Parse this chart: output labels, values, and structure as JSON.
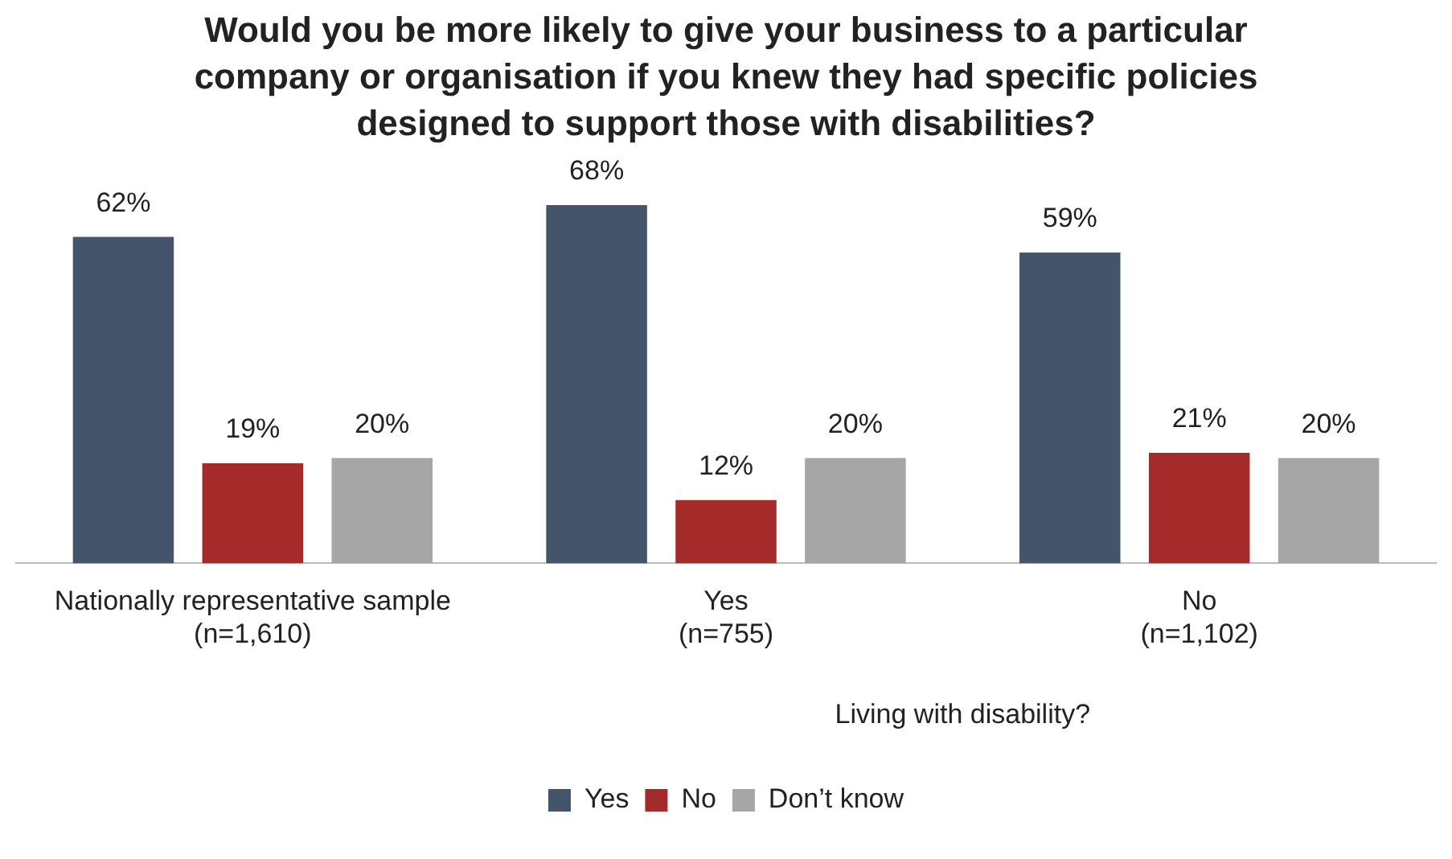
{
  "chart_data": {
    "type": "bar",
    "title": "Would you be more likely to give your business to a particular company or organisation if you knew they had specific policies designed to support those with disabilities?",
    "categories": [
      "Nationally representative sample\n(n=1,610)",
      "Yes\n(n=755)",
      "No\n(n=1,102)"
    ],
    "series": [
      {
        "name": "Yes",
        "color": "#44546a",
        "values": [
          62,
          68,
          59
        ],
        "value_labels": [
          "62%",
          "68%",
          "59%"
        ]
      },
      {
        "name": "No",
        "color": "#a52a2a",
        "values": [
          19,
          12,
          21
        ],
        "value_labels": [
          "19%",
          "12%",
          "21%"
        ]
      },
      {
        "name": "Don’t know",
        "color": "#a6a6a6",
        "values": [
          20,
          20,
          20
        ],
        "value_labels": [
          "20%",
          "20%",
          "20%"
        ]
      }
    ],
    "legend": "bottom",
    "grid": false,
    "annotations": [
      {
        "text": "Living with disability?"
      }
    ]
  }
}
